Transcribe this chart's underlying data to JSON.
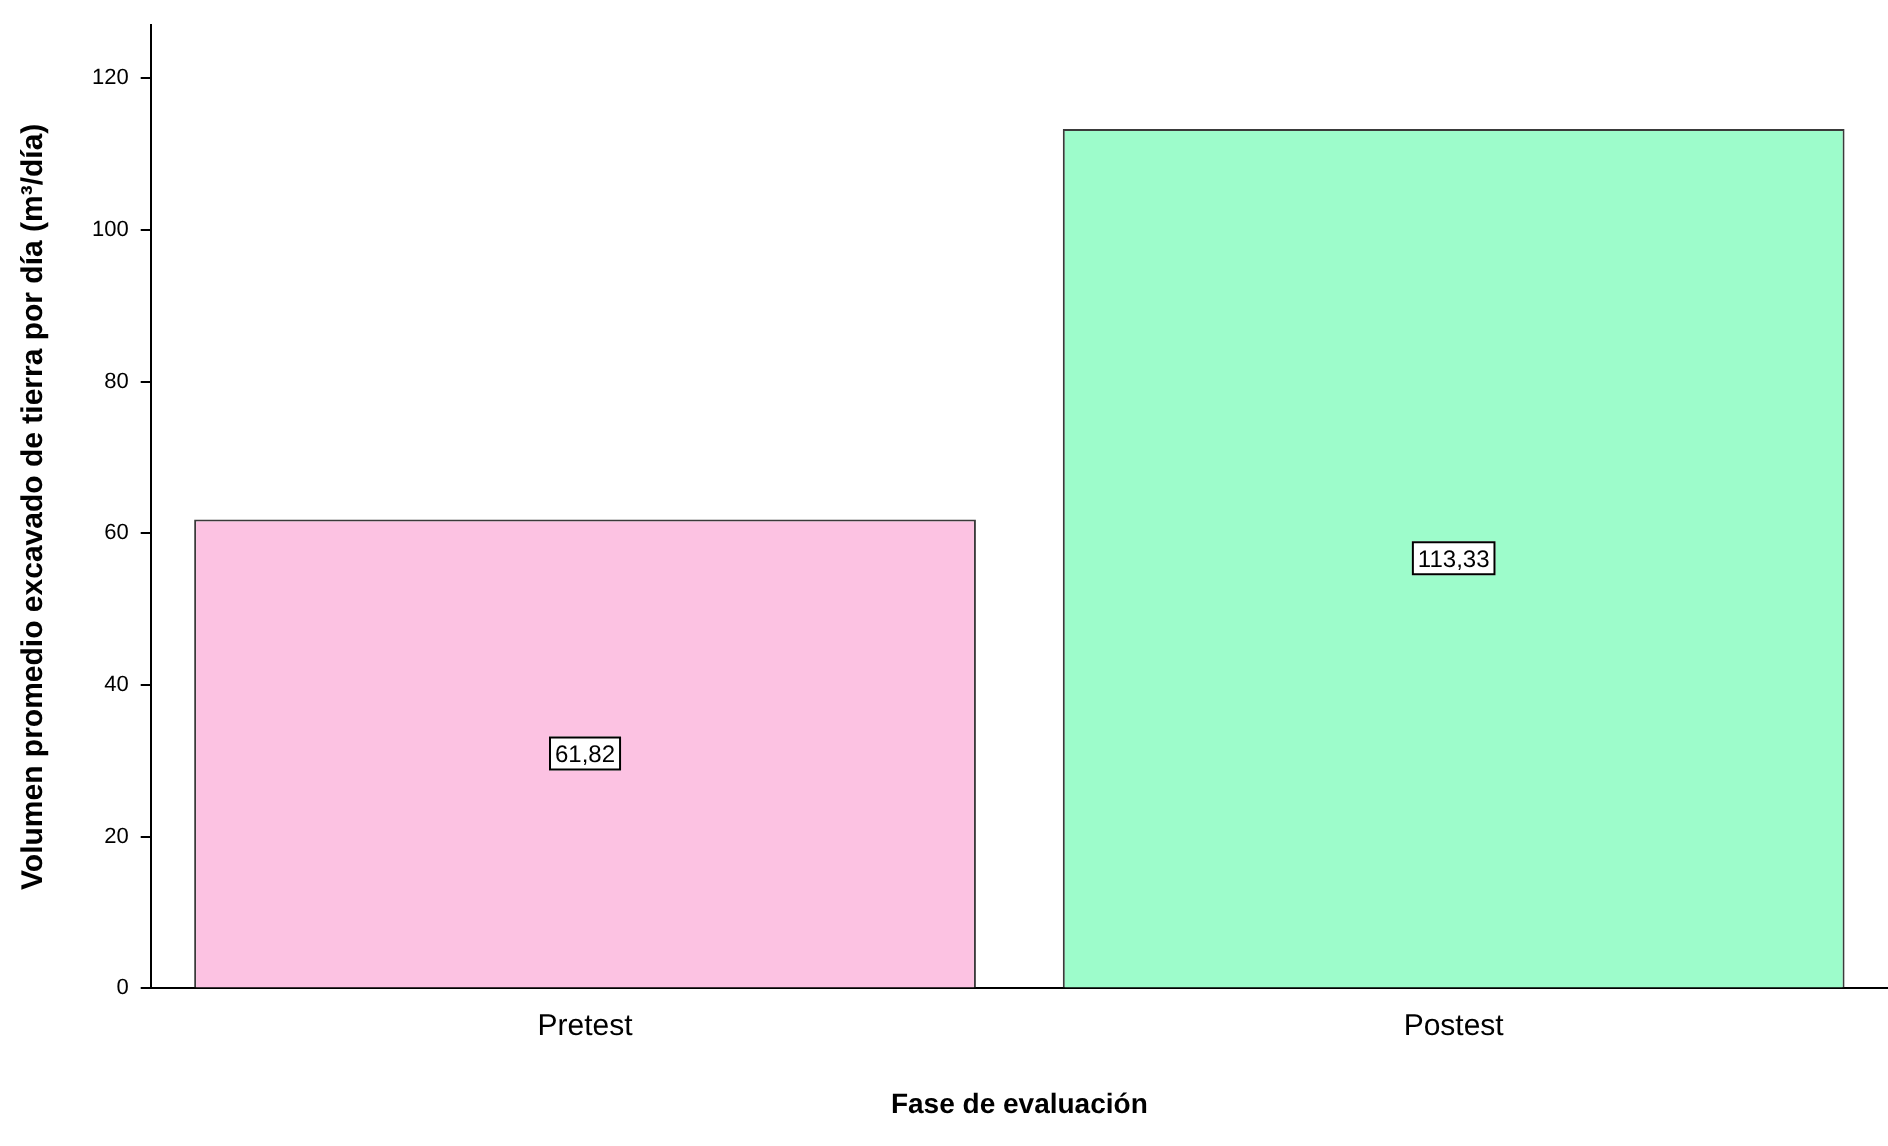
{
  "chart_data": {
    "type": "bar",
    "xlabel": "Fase de evaluación",
    "ylabel": "Volumen promedio excavado de tierra por día (m³/día)",
    "categories": [
      "Pretest",
      "Postest"
    ],
    "values": [
      61.82,
      113.33
    ],
    "colors": [
      "#fcc2e2",
      "#9dfccb"
    ],
    "value_labels": [
      "61,82",
      "113,33"
    ],
    "ylim": [
      0,
      127
    ],
    "yticks": [
      0,
      20,
      40,
      60,
      80,
      100,
      120
    ],
    "grid": false
  }
}
